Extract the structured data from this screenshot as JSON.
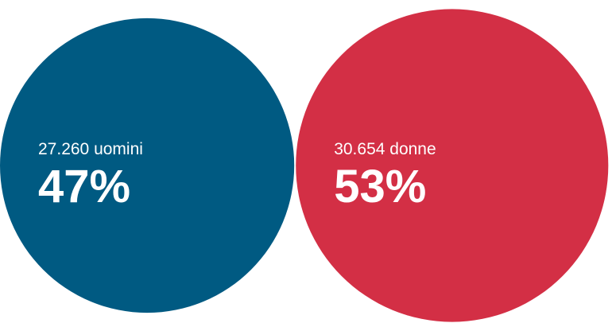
{
  "chart_data": {
    "type": "bubble",
    "categories": [
      "27.260 uomini",
      "30.654 donne"
    ],
    "values": [
      47,
      53
    ],
    "value_labels": [
      "47%",
      "53%"
    ],
    "colors": [
      "#005a82",
      "#d32f45"
    ]
  }
}
